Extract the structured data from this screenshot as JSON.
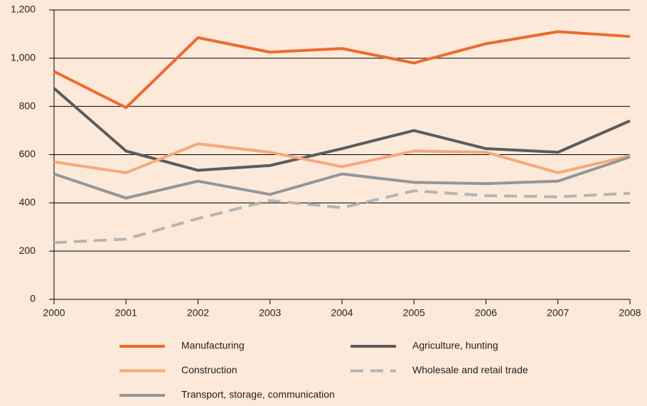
{
  "chart_data": {
    "type": "line",
    "categories": [
      "2000",
      "2001",
      "2002",
      "2003",
      "2004",
      "2005",
      "2006",
      "2007",
      "2008"
    ],
    "series": [
      {
        "name": "Manufacturing",
        "color": "#ec6b2d",
        "values": [
          945,
          795,
          1085,
          1025,
          1040,
          980,
          1060,
          1110,
          1090
        ]
      },
      {
        "name": "Agriculture, hunting",
        "color": "#5a5c5e",
        "values": [
          875,
          615,
          535,
          555,
          625,
          700,
          625,
          610,
          740
        ]
      },
      {
        "name": "Construction",
        "color": "#f5a97c",
        "values": [
          570,
          525,
          645,
          610,
          550,
          615,
          610,
          525,
          595
        ]
      },
      {
        "name": "Wholesale and retail trade",
        "color": "#b3b5b7",
        "dashed": true,
        "values": [
          235,
          250,
          335,
          410,
          380,
          450,
          430,
          425,
          440
        ]
      },
      {
        "name": "Transport, storage, communication",
        "color": "#949698",
        "values": [
          520,
          420,
          490,
          435,
          520,
          485,
          480,
          490,
          590
        ]
      }
    ],
    "ylim": [
      0,
      1200
    ],
    "yticks": [
      0,
      200,
      400,
      600,
      800,
      {
        "value": 1000,
        "label": "1,000"
      },
      {
        "value": 1200,
        "label": "1,200"
      }
    ],
    "grid": true
  }
}
